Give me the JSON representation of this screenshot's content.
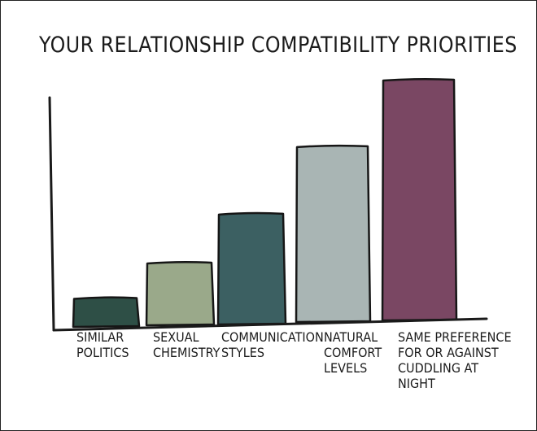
{
  "chart_data": {
    "type": "bar",
    "title": "YOUR RELATIONSHIP COMPATIBILITY PRIORITIES",
    "categories": [
      "SIMILAR POLITICS",
      "SEXUAL CHEMISTRY",
      "COMMUNICATION STYLES",
      "NATURAL COMFORT LEVELS",
      "SAME PREFERENCE FOR OR AGAINST CUDDLING AT NIGHT"
    ],
    "category_lines": [
      [
        "SIMILAR",
        "POLITICS"
      ],
      [
        "SEXUAL",
        "CHEMISTRY"
      ],
      [
        "COMMUNICATION",
        "STYLES"
      ],
      [
        "NATURAL",
        "COMFORT",
        "LEVELS"
      ],
      [
        "SAME PREFERENCE",
        "FOR OR AGAINST",
        "CUDDLING AT",
        "NIGHT"
      ]
    ],
    "values": [
      12,
      26,
      46,
      73,
      100
    ],
    "ylim": [
      0,
      100
    ],
    "colors": [
      "#2e4f46",
      "#9aa98a",
      "#3c6062",
      "#a9b5b4",
      "#7a4763"
    ],
    "xlabel": "",
    "ylabel": "",
    "grid": false,
    "legend": "none"
  }
}
